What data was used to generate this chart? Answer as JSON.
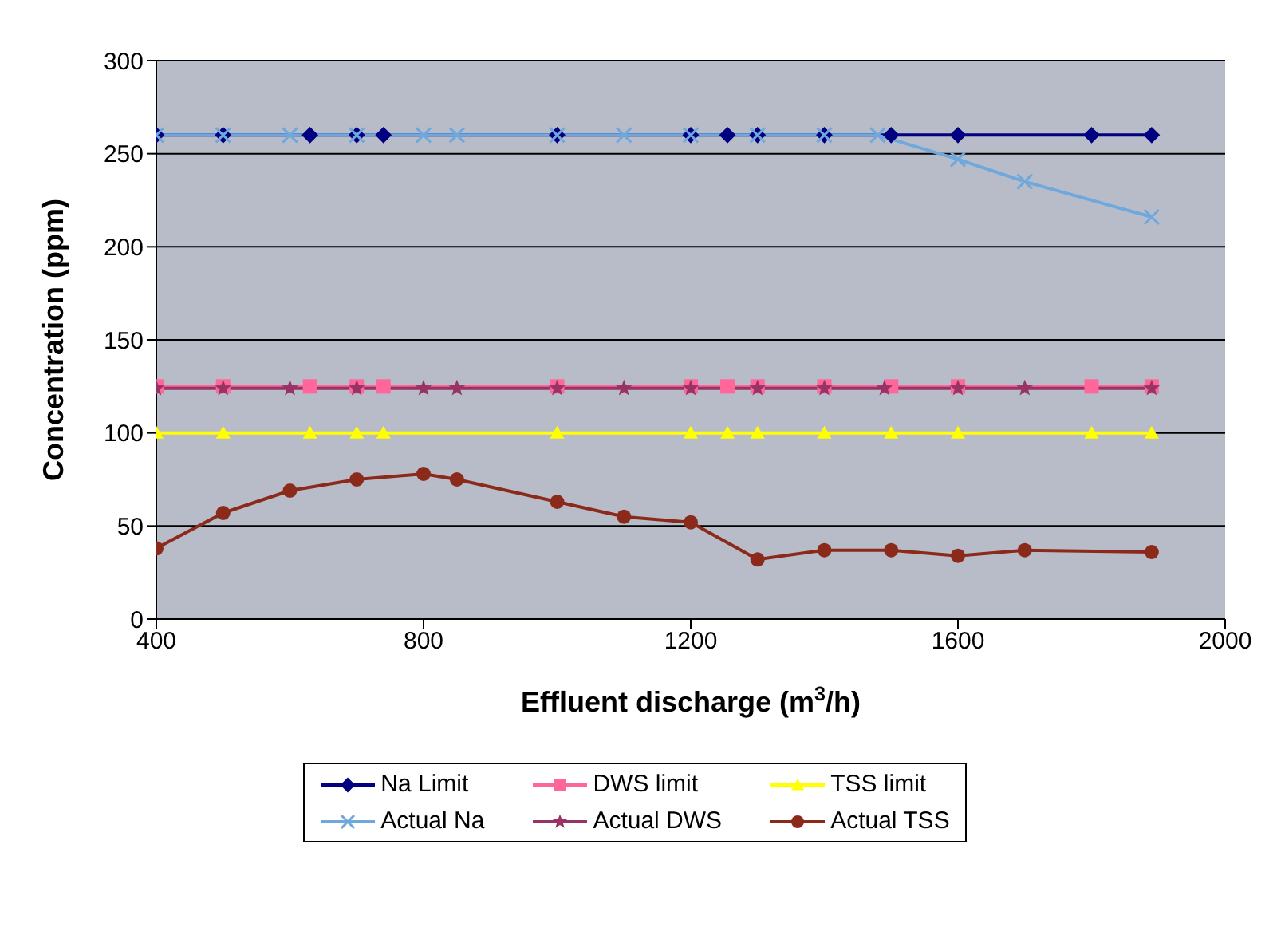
{
  "chart_data": {
    "type": "line",
    "xlabel": "Effluent discharge (m$^{3}$/h)",
    "ylabel": "Concentration (ppm)",
    "xlim": [
      400,
      2000
    ],
    "xticks": [
      400,
      800,
      1200,
      1600,
      2000
    ],
    "ylim": [
      0,
      300
    ],
    "yticks": [
      0,
      50,
      100,
      150,
      200,
      250,
      300
    ],
    "grid": "y",
    "legend": "bottom",
    "line_style": "solid",
    "series": [
      {
        "name": "Na Limit",
        "color": "#000080",
        "marker": "diamond",
        "x": [
          400,
          500,
          630,
          700,
          740,
          1000,
          1200,
          1255,
          1300,
          1400,
          1500,
          1600,
          1800,
          1890
        ],
        "values": [
          260,
          260,
          260,
          260,
          260,
          260,
          260,
          260,
          260,
          260,
          260,
          260,
          260,
          260
        ]
      },
      {
        "name": "DWS limit",
        "color": "#ff6699",
        "marker": "square",
        "x": [
          400,
          500,
          630,
          700,
          740,
          1000,
          1200,
          1255,
          1300,
          1400,
          1500,
          1600,
          1800,
          1890
        ],
        "values": [
          125,
          125,
          125,
          125,
          125,
          125,
          125,
          125,
          125,
          125,
          125,
          125,
          125,
          125
        ]
      },
      {
        "name": "TSS limit",
        "color": "#ffff00",
        "marker": "triangle",
        "x": [
          400,
          500,
          630,
          700,
          740,
          1000,
          1200,
          1255,
          1300,
          1400,
          1500,
          1600,
          1800,
          1890
        ],
        "values": [
          100,
          100,
          100,
          100,
          100,
          100,
          100,
          100,
          100,
          100,
          100,
          100,
          100,
          100
        ]
      },
      {
        "name": "Actual Na",
        "color": "#6fa8dc",
        "marker": "cross",
        "x": [
          400,
          500,
          600,
          700,
          800,
          850,
          1000,
          1100,
          1200,
          1300,
          1400,
          1480,
          1600,
          1700,
          1890
        ],
        "values": [
          260,
          260,
          260,
          260,
          260,
          260,
          260,
          260,
          260,
          260,
          260,
          260,
          247,
          235,
          216
        ]
      },
      {
        "name": "Actual DWS",
        "color": "#993366",
        "marker": "star",
        "x": [
          400,
          500,
          600,
          700,
          800,
          850,
          1000,
          1100,
          1200,
          1300,
          1400,
          1490,
          1600,
          1700,
          1890
        ],
        "values": [
          124,
          124,
          124,
          124,
          124,
          124,
          124,
          124,
          124,
          124,
          124,
          124,
          124,
          124,
          124
        ]
      },
      {
        "name": "Actual TSS",
        "color": "#8b2a1a",
        "marker": "circle",
        "x": [
          400,
          500,
          600,
          700,
          800,
          850,
          1000,
          1100,
          1200,
          1300,
          1400,
          1500,
          1600,
          1700,
          1890
        ],
        "values": [
          38,
          57,
          69,
          75,
          78,
          75,
          63,
          55,
          52,
          32,
          37,
          37,
          34,
          37,
          36
        ]
      }
    ]
  }
}
